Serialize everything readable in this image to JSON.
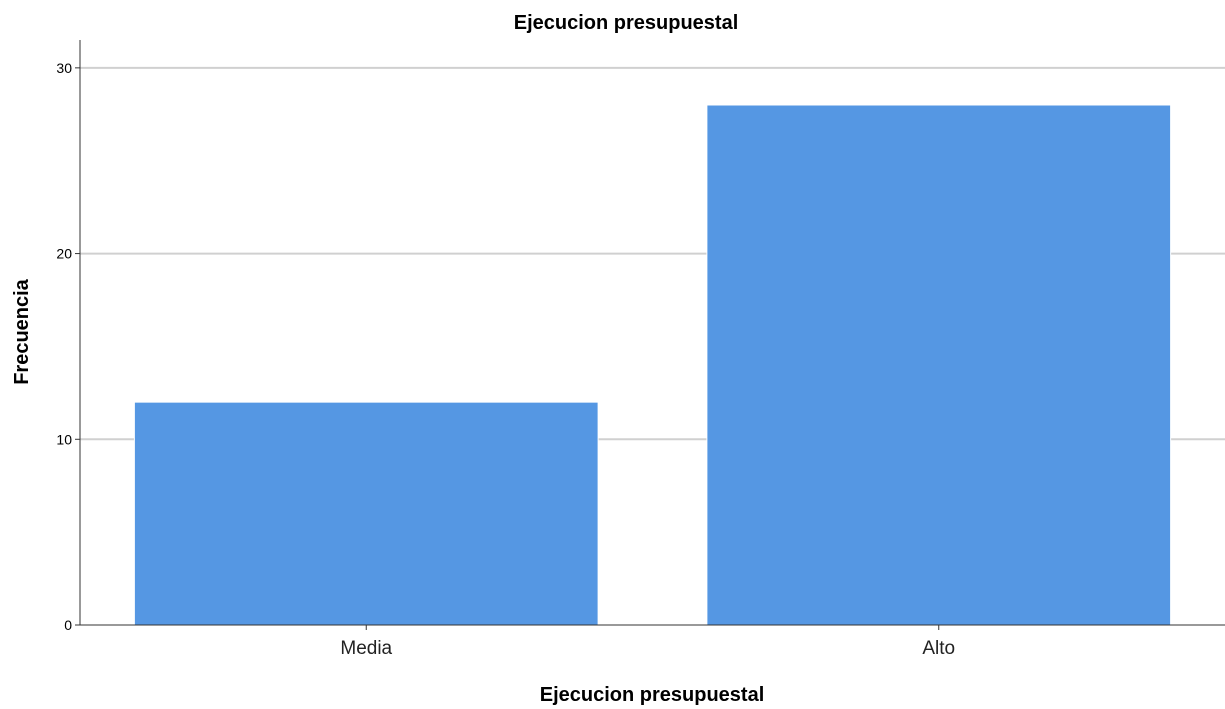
{
  "chart_data": {
    "type": "bar",
    "title": "Ejecucion presupuestal",
    "xlabel": "Ejecucion presupuestal",
    "ylabel": "Frecuencia",
    "categories": [
      "Media",
      "Alto"
    ],
    "values": [
      12,
      28
    ],
    "ylim": [
      0,
      31.5
    ],
    "yticks": [
      0,
      10,
      20,
      30
    ],
    "grid": true,
    "legend": "none",
    "colors": {
      "bar": "#5597e3",
      "grid": "#d0d0d0",
      "axis": "#333333"
    }
  }
}
